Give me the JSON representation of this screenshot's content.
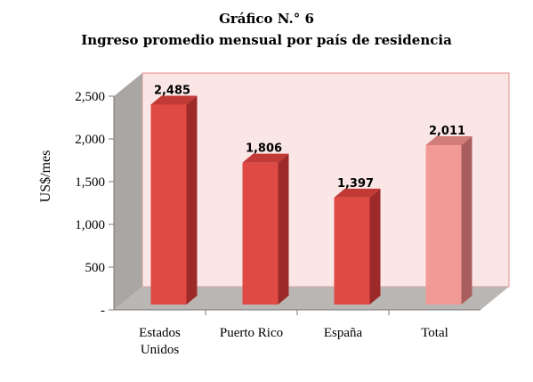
{
  "chart_data": {
    "type": "bar",
    "title": "Gráfico N.° 6",
    "subtitle": "Ingreso promedio mensual por país de residencia",
    "ylabel": "US$/mes",
    "xlabel": "",
    "categories": [
      [
        "Estados",
        "Unidos"
      ],
      [
        "Puerto Rico"
      ],
      [
        "España"
      ],
      [
        "Total"
      ]
    ],
    "values": [
      2485,
      1806,
      1397,
      2011
    ],
    "value_labels": [
      "2,485",
      "1,806",
      "1,397",
      "2,011"
    ],
    "y_ticks": [
      {
        "value": 0,
        "label": "-"
      },
      {
        "value": 500,
        "label": "500"
      },
      {
        "value": 1000,
        "label": "1,000"
      },
      {
        "value": 1500,
        "label": "1,500"
      },
      {
        "value": 2000,
        "label": "2,000"
      },
      {
        "value": 2500,
        "label": "2,500"
      }
    ],
    "ylim": [
      0,
      2500
    ],
    "grid": false,
    "legend": "none",
    "colors": {
      "bar": "#e04a45",
      "bar_side": "#9c2a28",
      "bar_top": "#c13a36",
      "highlight_bar": "#f29a96",
      "highlight_side": "#a85e5c",
      "highlight_top": "#d17d79",
      "wall": "#fbe6e6",
      "wall_border": "#e88e8e",
      "side_wall": "#aaa6a3",
      "floor": "#bab6b3"
    }
  }
}
